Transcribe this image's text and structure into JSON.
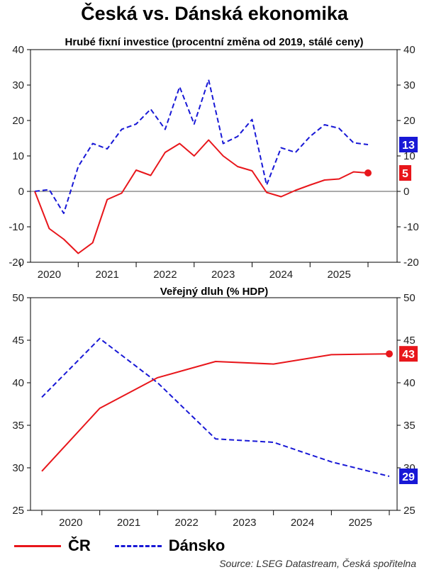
{
  "title": "Česká vs. Dánská ekonomika",
  "colors": {
    "cz": "#e8161b",
    "dk": "#1818d6"
  },
  "legend": {
    "cz_label": "ČR",
    "dk_label": "Dánsko"
  },
  "source": "Source: LSEG Datastream, Česká spořitelna",
  "chart_data": [
    {
      "type": "line",
      "title": "Hrubé fixní investice (procentní změna od 2019, stálé ceny)",
      "xlabel": "",
      "ylabel": "",
      "xlim": [
        2019.6,
        2025.9
      ],
      "ylim": [
        -20,
        40
      ],
      "yticks": [
        -20,
        -10,
        0,
        10,
        20,
        30,
        40
      ],
      "year_labels": [
        "2020",
        "2021",
        "2022",
        "2023",
        "2024",
        "2025"
      ],
      "zero_line": true,
      "series": [
        {
          "name": "ČR",
          "key": "cz",
          "end_label": "5",
          "end_marker": true,
          "x": [
            2019.75,
            2020.0,
            2020.25,
            2020.5,
            2020.75,
            2021.0,
            2021.25,
            2021.5,
            2021.75,
            2022.0,
            2022.25,
            2022.5,
            2022.75,
            2023.0,
            2023.25,
            2023.5,
            2023.75,
            2024.0,
            2024.25,
            2024.5,
            2024.75,
            2025.0,
            2025.25,
            2025.5
          ],
          "y": [
            0,
            -10.5,
            -13.5,
            -17.5,
            -14.5,
            -2.3,
            -0.5,
            6.0,
            4.5,
            11.0,
            13.5,
            10.0,
            14.5,
            10.0,
            7.0,
            5.8,
            -0.3,
            -1.5,
            0.3,
            1.8,
            3.2,
            3.5,
            5.5,
            5.2
          ]
        },
        {
          "name": "Dánsko",
          "key": "dk",
          "end_label": "13",
          "end_marker": false,
          "x": [
            2019.75,
            2020.0,
            2020.25,
            2020.5,
            2020.75,
            2021.0,
            2021.25,
            2021.5,
            2021.75,
            2022.0,
            2022.25,
            2022.5,
            2022.75,
            2023.0,
            2023.25,
            2023.5,
            2023.75,
            2024.0,
            2024.25,
            2024.5,
            2024.75,
            2025.0,
            2025.25,
            2025.5
          ],
          "y": [
            0,
            0.5,
            -6.2,
            7.0,
            13.5,
            12.0,
            17.5,
            19.0,
            23.2,
            17.5,
            29.5,
            19.0,
            31.5,
            13.5,
            15.5,
            20.3,
            1.8,
            12.3,
            11.0,
            15.5,
            18.8,
            17.8,
            13.7,
            13.2
          ]
        }
      ]
    },
    {
      "type": "line",
      "title": "Veřejný dluh (% HDP)",
      "xlabel": "",
      "ylabel": "",
      "xlim": [
        2019,
        2026
      ],
      "ylim": [
        25,
        50
      ],
      "yticks": [
        25,
        30,
        35,
        40,
        45,
        50
      ],
      "year_labels": [
        "2020",
        "2021",
        "2022",
        "2023",
        "2024",
        "2025"
      ],
      "zero_line": false,
      "series": [
        {
          "name": "ČR",
          "key": "cz",
          "end_label": "43",
          "end_marker": true,
          "x": [
            2019,
            2020,
            2021,
            2022,
            2023,
            2024,
            2025
          ],
          "y": [
            29.6,
            37.0,
            40.6,
            42.5,
            42.2,
            43.3,
            43.4
          ]
        },
        {
          "name": "Dánsko",
          "key": "dk",
          "end_label": "29",
          "end_marker": false,
          "x": [
            2019,
            2020,
            2021,
            2022,
            2023,
            2024,
            2025
          ],
          "y": [
            38.3,
            45.2,
            40.0,
            33.4,
            33.0,
            30.7,
            29.0
          ]
        }
      ]
    }
  ]
}
